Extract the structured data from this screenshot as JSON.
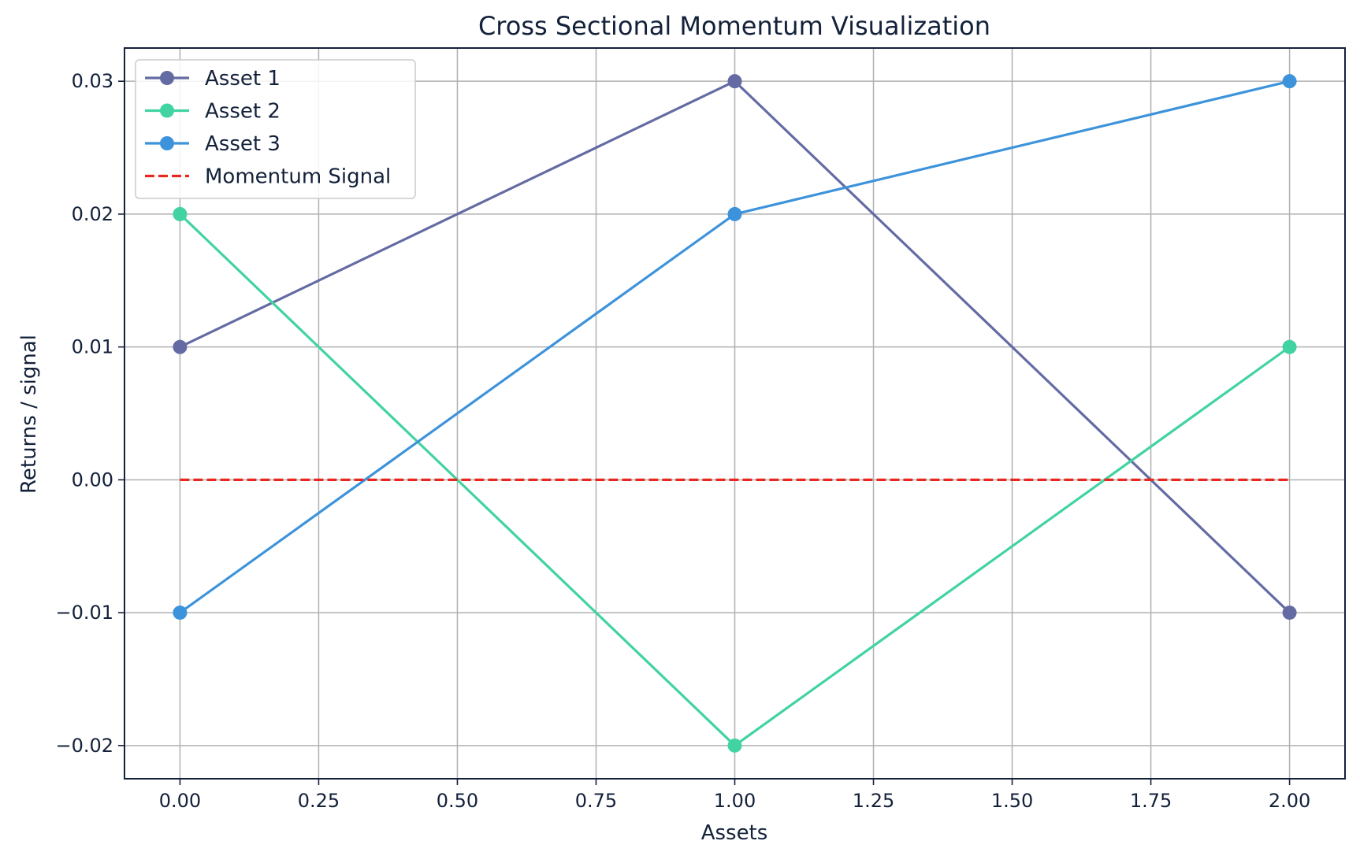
{
  "chart_data": {
    "type": "line",
    "title": "Cross Sectional Momentum Visualization",
    "xlabel": "Assets",
    "ylabel": "Returns / signal",
    "x": [
      0,
      1,
      2
    ],
    "xlim": [
      -0.1,
      2.1
    ],
    "ylim": [
      -0.0225,
      0.0325
    ],
    "xticks": [
      0,
      0.25,
      0.5,
      0.75,
      1,
      1.25,
      1.5,
      1.75,
      2
    ],
    "xtick_labels": [
      "0.00",
      "0.25",
      "0.50",
      "0.75",
      "1.00",
      "1.25",
      "1.50",
      "1.75",
      "2.00"
    ],
    "yticks": [
      -0.02,
      -0.01,
      0,
      0.01,
      0.02,
      0.03
    ],
    "ytick_labels": [
      "−0.02",
      "−0.01",
      "0.00",
      "0.01",
      "0.02",
      "0.03"
    ],
    "grid": true,
    "legend_position": "top-left",
    "series": [
      {
        "name": "Asset 1",
        "values": [
          0.01,
          0.03,
          -0.01
        ],
        "color": "#646ba3",
        "style": "solid",
        "marker": "circle"
      },
      {
        "name": "Asset 2",
        "values": [
          0.02,
          -0.02,
          0.01
        ],
        "color": "#41d3a1",
        "style": "solid",
        "marker": "circle"
      },
      {
        "name": "Asset 3",
        "values": [
          -0.01,
          0.02,
          0.03
        ],
        "color": "#3d93db",
        "style": "solid",
        "marker": "circle"
      },
      {
        "name": "Momentum Signal",
        "values": [
          0,
          0,
          0
        ],
        "color": "#e8281e",
        "style": "dashed",
        "marker": "none"
      }
    ]
  }
}
